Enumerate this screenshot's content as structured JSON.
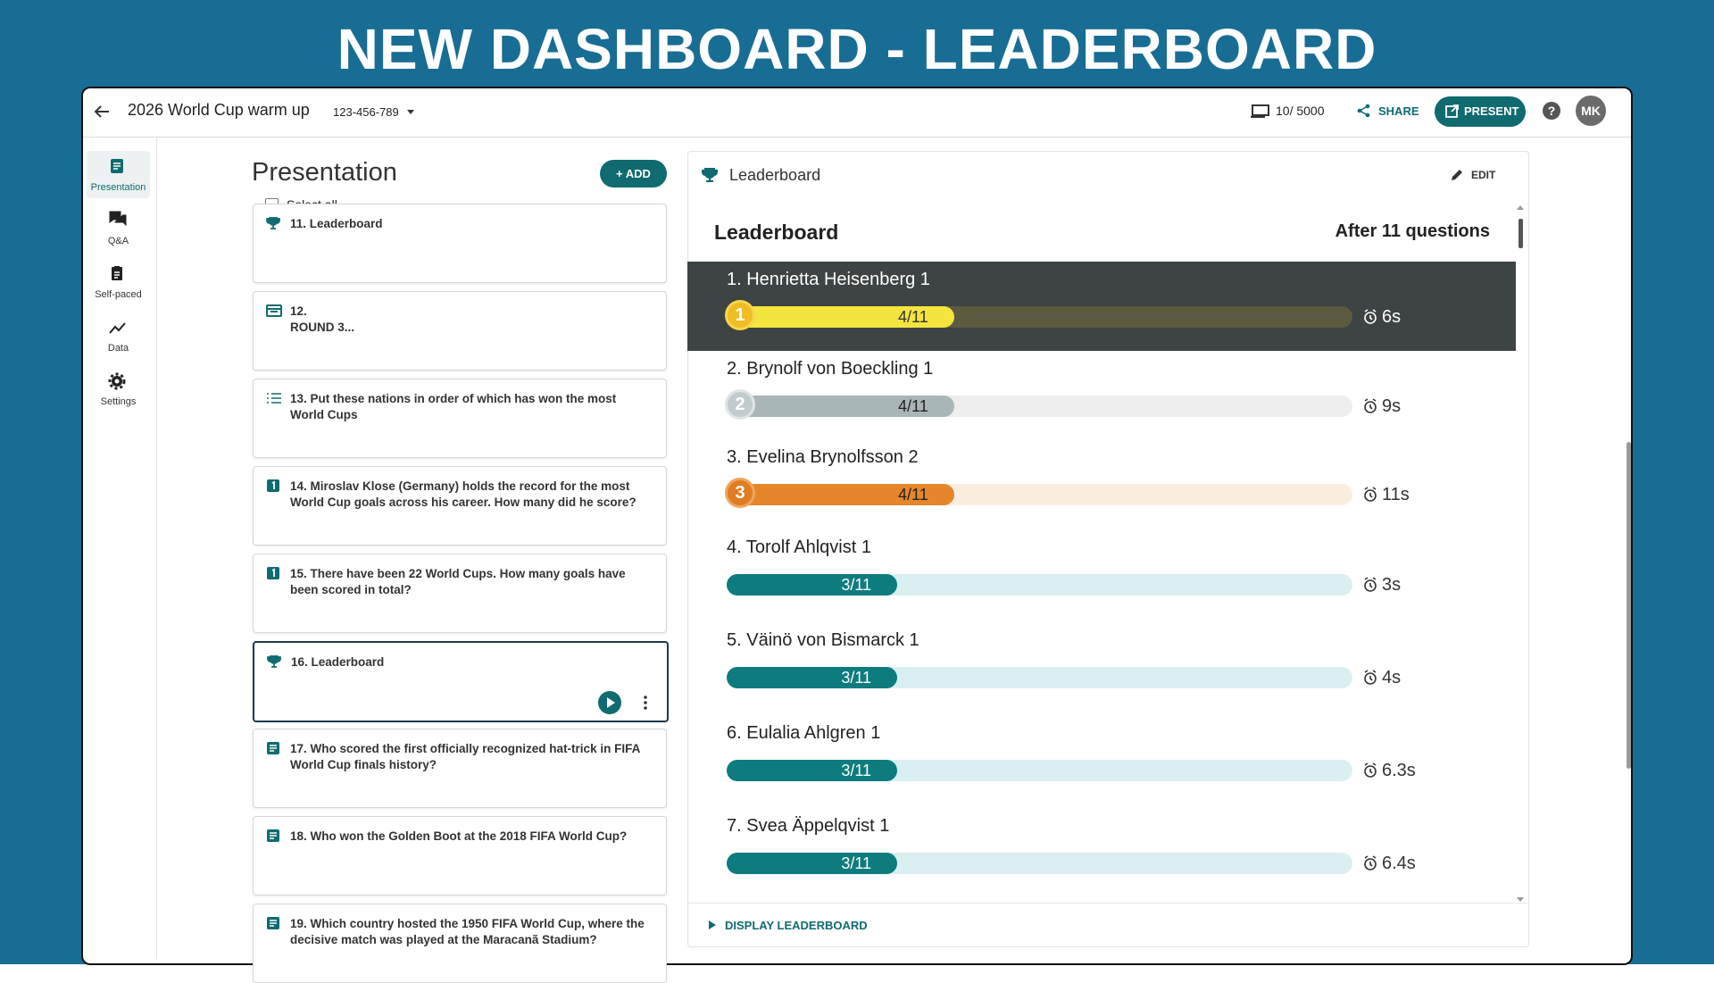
{
  "header": {
    "title": "NEW DASHBOARD - LEADERBOARD"
  },
  "topbar": {
    "presentation_name": "2026 World Cup warm up",
    "code": "123-456-789",
    "participants": "10/ 5000",
    "share": "SHARE",
    "present": "PRESENT",
    "avatar": "MK"
  },
  "sidebar": {
    "items": [
      "Presentation",
      "Q&A",
      "Self-paced",
      "Data",
      "Settings"
    ]
  },
  "presentation": {
    "title": "Presentation",
    "add": "ADD",
    "select_all": "Select all",
    "cards": [
      "11. Leaderboard",
      "12.\nROUND 3...",
      "13. Put these nations in order of which has won the most World Cups",
      "14. Miroslav Klose (Germany) holds the record for the most World Cup goals across his career. How many did he score?",
      "15. There have been 22 World Cups. How many goals have been scored in total?",
      "16. Leaderboard",
      "17. Who scored the first officially recognized hat-trick in FIFA World Cup finals history?",
      "18. Who won the Golden Boot at the 2018 FIFA World Cup?",
      "19. Which country hosted the 1950 FIFA World Cup, where the decisive match was played at the Maracanã Stadium?"
    ]
  },
  "leaderboard": {
    "panel_title": "Leaderboard",
    "edit": "EDIT",
    "title": "Leaderboard",
    "subtitle": "After 11 questions",
    "footer": "DISPLAY LEADERBOARD",
    "rows": [
      {
        "name": "1. Henrietta Heisenberg 1",
        "medal": "1",
        "score": "4/11",
        "correct": 4,
        "total": 11,
        "time": "6s"
      },
      {
        "name": "2. Brynolf von Boeckling 1",
        "medal": "2",
        "score": "4/11",
        "correct": 4,
        "total": 11,
        "time": "9s"
      },
      {
        "name": "3. Evelina Brynolfsson 2",
        "medal": "3",
        "score": "4/11",
        "correct": 4,
        "total": 11,
        "time": "11s"
      },
      {
        "name": "4. Torolf Ahlqvist 1",
        "score": "3/11",
        "correct": 3,
        "total": 11,
        "time": "3s"
      },
      {
        "name": "5. Väinö von Bismarck 1",
        "score": "3/11",
        "correct": 3,
        "total": 11,
        "time": "4s"
      },
      {
        "name": "6. Eulalia Ahlgren 1",
        "score": "3/11",
        "correct": 3,
        "total": 11,
        "time": "6.3s"
      },
      {
        "name": "7. Svea Äppelqvist 1",
        "score": "3/11",
        "correct": 3,
        "total": 11,
        "time": "6.4s"
      }
    ]
  }
}
